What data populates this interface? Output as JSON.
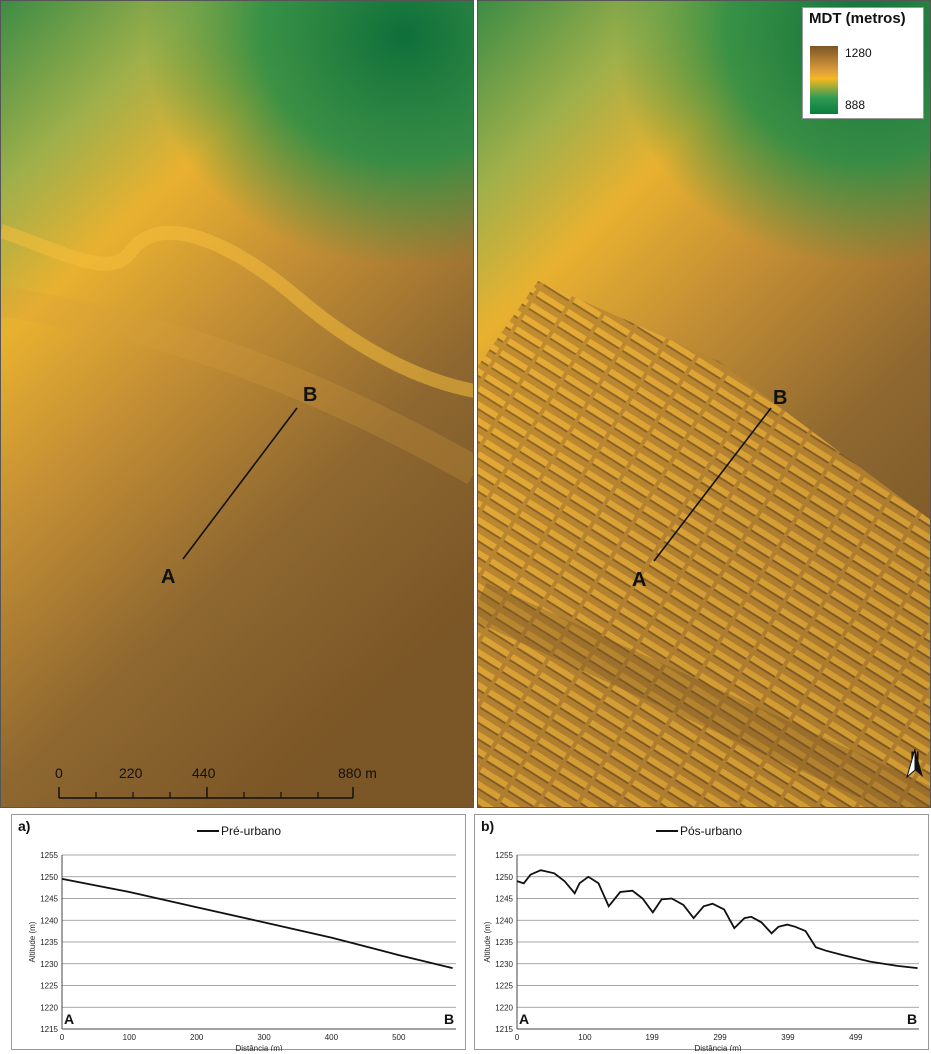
{
  "legend": {
    "title": "MDT (metros)",
    "max": "1280",
    "min": "888"
  },
  "transect": {
    "start": "A",
    "end": "B"
  },
  "scale": {
    "ticks": [
      "0",
      "220",
      "440",
      "880 m"
    ]
  },
  "north_label": "N",
  "colors": {
    "low": "#7b5626",
    "mid": "#f4b323",
    "high": "#0c7c3c"
  },
  "chart_data": [
    {
      "type": "line",
      "panel": "a)",
      "title": "",
      "series": [
        {
          "name": "Pré-urbano",
          "x": [
            0,
            100,
            200,
            300,
            400,
            500,
            580
          ],
          "y": [
            1249.5,
            1246.5,
            1243.0,
            1239.5,
            1236.0,
            1232.0,
            1229.0
          ]
        }
      ],
      "xlabel": "Distância (m)",
      "ylabel": "Altitude (m)",
      "xticks": [
        0,
        100,
        200,
        300,
        400,
        500
      ],
      "xlim": [
        0,
        585
      ],
      "ylim": [
        1215,
        1255
      ],
      "yticks": [
        1215,
        1220,
        1225,
        1230,
        1235,
        1240,
        1245,
        1250,
        1255
      ],
      "grid": true,
      "legend": "top-center",
      "point_labels": [
        "A",
        "B"
      ]
    },
    {
      "type": "line",
      "panel": "b)",
      "title": "",
      "series": [
        {
          "name": "Pós-urbano",
          "x": [
            0,
            10,
            20,
            35,
            55,
            70,
            85,
            92,
            105,
            120,
            135,
            152,
            170,
            185,
            200,
            213,
            228,
            245,
            260,
            275,
            288,
            305,
            320,
            335,
            345,
            360,
            375,
            385,
            398,
            410,
            425,
            440,
            455,
            480,
            520,
            560,
            590
          ],
          "y": [
            1249.0,
            1248.5,
            1250.5,
            1251.5,
            1250.8,
            1249.0,
            1246.2,
            1248.5,
            1250.0,
            1248.5,
            1243.2,
            1246.5,
            1246.8,
            1245.0,
            1241.8,
            1244.8,
            1245.0,
            1243.5,
            1240.5,
            1243.2,
            1243.8,
            1242.5,
            1238.2,
            1240.5,
            1240.8,
            1239.5,
            1237.0,
            1238.5,
            1239.0,
            1238.5,
            1237.5,
            1233.8,
            1233.0,
            1232.0,
            1230.5,
            1229.5,
            1229.0
          ]
        }
      ],
      "xlabel": "Distância (m)",
      "ylabel": "Altitude (m)",
      "xticks": [
        0,
        100,
        199,
        299,
        399,
        499
      ],
      "xlim": [
        0,
        592
      ],
      "ylim": [
        1215,
        1255
      ],
      "yticks": [
        1215,
        1220,
        1225,
        1230,
        1235,
        1240,
        1245,
        1250,
        1255
      ],
      "grid": true,
      "legend": "top-center",
      "point_labels": [
        "A",
        "B"
      ]
    }
  ]
}
